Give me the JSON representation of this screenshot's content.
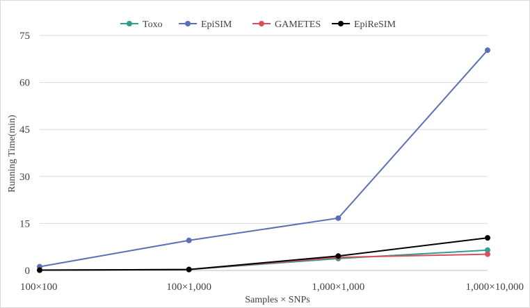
{
  "chart_data": {
    "type": "line",
    "categories": [
      "100×100",
      "100×1,000",
      "1,000×1,000",
      "1,000×10,000"
    ],
    "series": [
      {
        "name": "Toxo",
        "color": "#2e9e8e",
        "values": [
          0.1,
          0.3,
          3.8,
          6.5
        ]
      },
      {
        "name": "EpiSIM",
        "color": "#5b6fb5",
        "values": [
          1.2,
          9.6,
          16.7,
          70.3
        ]
      },
      {
        "name": "GAMETES",
        "color": "#d9505c",
        "values": [
          0.1,
          0.3,
          4.2,
          5.2
        ]
      },
      {
        "name": "EpiReSIM",
        "color": "#000000",
        "values": [
          0.1,
          0.3,
          4.6,
          10.4
        ]
      }
    ],
    "yticks": [
      "0",
      "15",
      "30",
      "45",
      "60",
      "75"
    ],
    "ylim": [
      0,
      75
    ],
    "xlabel": "Samples × SNPs",
    "ylabel": "Running Time(min)",
    "legend_position": "top",
    "grid": true
  }
}
